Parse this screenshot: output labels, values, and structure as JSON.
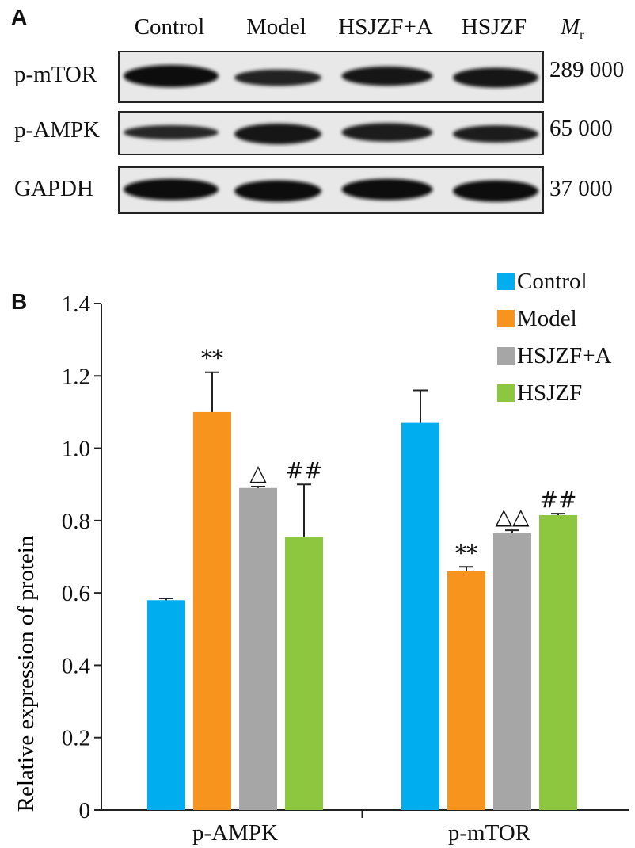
{
  "panel_a": {
    "letter": "A",
    "lanes": [
      "Control",
      "Model",
      "HSJZF+A",
      "HSJZF"
    ],
    "mr_symbol": "M",
    "mr_subscript": "r",
    "blots": [
      {
        "protein": "p-mTOR",
        "mw": "289 000",
        "intensity": [
          1.0,
          0.6,
          0.8,
          0.85
        ]
      },
      {
        "protein": "p-AMPK",
        "mw": "65 000",
        "intensity": [
          0.45,
          0.9,
          0.75,
          0.65
        ]
      },
      {
        "protein": "GAPDH",
        "mw": "37 000",
        "intensity": [
          0.95,
          0.95,
          0.95,
          0.95
        ]
      }
    ]
  },
  "panel_b": {
    "letter": "B",
    "legend": [
      "Control",
      "Model",
      "HSJZF+A",
      "HSJZF"
    ],
    "colors": [
      "#00aeef",
      "#f7941d",
      "#a6a6a6",
      "#8dc63f"
    ]
  },
  "chart_data": {
    "type": "bar",
    "categories": [
      "p-AMPK",
      "p-mTOR"
    ],
    "ylabel": "Relative expression of protein",
    "ylim": [
      0,
      1.4
    ],
    "yticks": [
      0,
      0.2,
      0.4,
      0.6,
      0.8,
      1.0,
      1.2,
      1.4
    ],
    "ytick_labels": [
      "0",
      "0.2",
      "0.4",
      "0.6",
      "0.8",
      "1.0",
      "1.2",
      "1.4"
    ],
    "series": [
      {
        "name": "Control",
        "values": [
          0.58,
          1.07
        ],
        "errors": [
          0.005,
          0.09
        ],
        "annotations": [
          "",
          ""
        ]
      },
      {
        "name": "Model",
        "values": [
          1.1,
          0.66
        ],
        "errors": [
          0.11,
          0.012
        ],
        "annotations": [
          "**",
          "**"
        ]
      },
      {
        "name": "HSJZF+A",
        "values": [
          0.89,
          0.765
        ],
        "errors": [
          0.004,
          0.008
        ],
        "annotations": [
          "△",
          "△△"
        ]
      },
      {
        "name": "HSJZF",
        "values": [
          0.755,
          0.815
        ],
        "errors": [
          0.145,
          0.004
        ],
        "annotations": [
          "##",
          "##"
        ]
      }
    ]
  }
}
